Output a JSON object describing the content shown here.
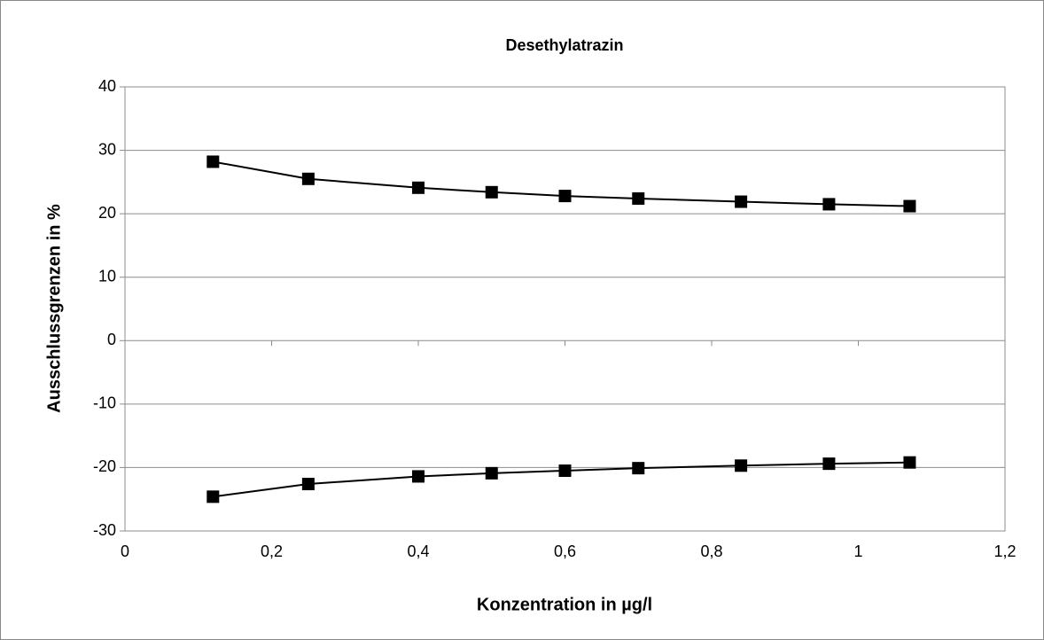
{
  "chart_data": {
    "type": "line",
    "title": "Desethylatrazin",
    "x_label": "Konzentration in µg/l",
    "y_label": "Ausschlussgrenzen in %",
    "x": [
      0.12,
      0.25,
      0.4,
      0.5,
      0.6,
      0.7,
      0.84,
      0.96,
      1.07
    ],
    "series": [
      {
        "color": "#000000",
        "values": [
          28.2,
          25.5,
          24.1,
          23.4,
          22.8,
          22.4,
          21.9,
          21.5,
          21.2
        ]
      },
      {
        "color": "#000000",
        "values": [
          -24.6,
          -22.6,
          -21.4,
          -20.9,
          -20.5,
          -20.1,
          -19.7,
          -19.4,
          -19.2
        ]
      }
    ],
    "xlim": [
      0,
      1.2
    ],
    "xticks": [
      0,
      {
        "value": 0.2,
        "label": "0,2"
      },
      {
        "value": 0.4,
        "label": "0,4"
      },
      {
        "value": 0.6,
        "label": "0,6"
      },
      {
        "value": 0.8,
        "label": "0,8"
      },
      1,
      {
        "value": 1.2,
        "label": "1,2"
      }
    ],
    "ylim": [
      -30,
      40
    ],
    "yticks": [
      -30,
      -20,
      -10,
      0,
      10,
      20,
      30,
      40
    ],
    "grid": true
  }
}
